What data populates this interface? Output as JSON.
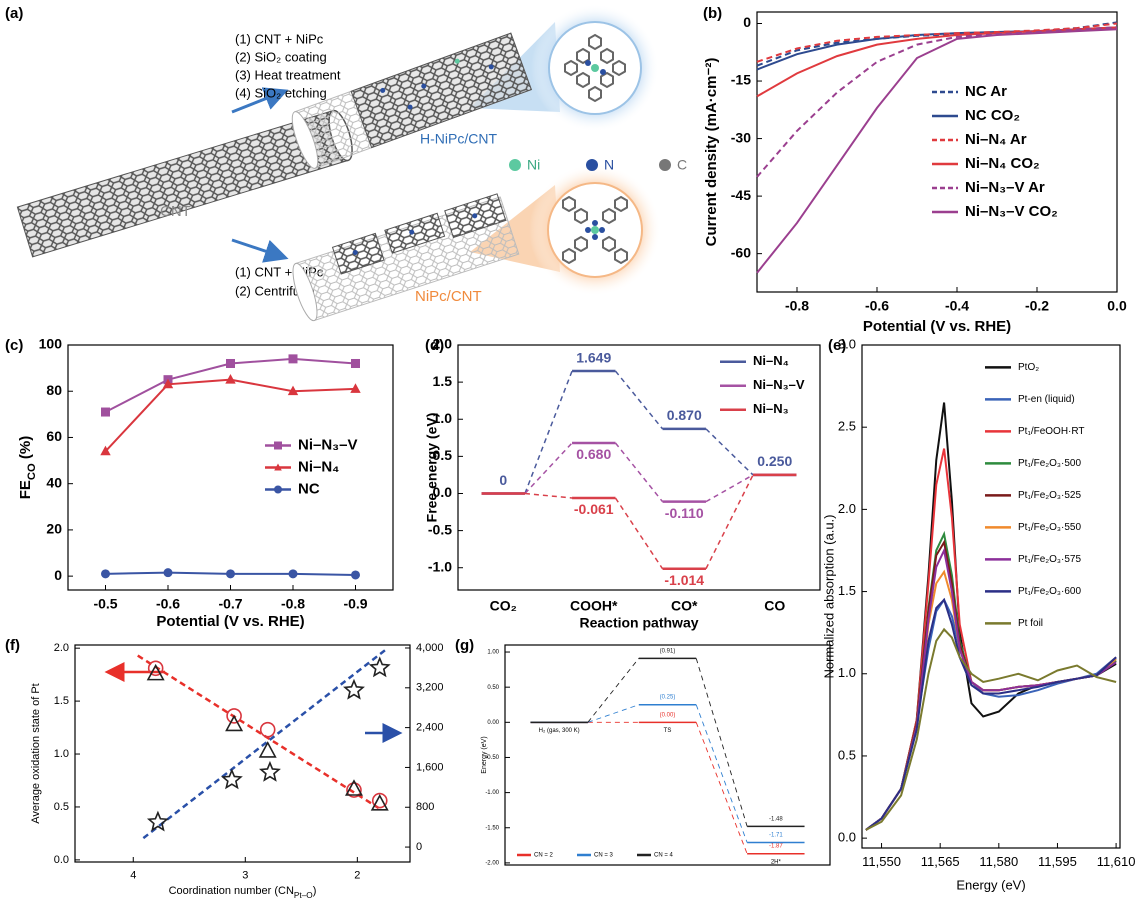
{
  "panel_a": {
    "panel_label": "(a)",
    "steps_top": [
      "(1) CNT + NiPc",
      "(2) SiO₂ coating",
      "(3) Heat treatment",
      "(4) SiO₂ etching"
    ],
    "product_top": "H-NiPc/CNT",
    "atoms": [
      "Ni",
      "N",
      "C"
    ],
    "start": "CNT",
    "steps_bottom": [
      "(1) CNT + NiPc",
      "(2) Centrifuge"
    ],
    "product_bottom": "NiPc/CNT"
  },
  "chart_data": [
    {
      "panel_label": "(b)",
      "type": "line",
      "xlabel": "Potential (V vs. RHE)",
      "ylabel": "Current density (mA·cm⁻²)",
      "x": [
        -0.9,
        -0.8,
        -0.7,
        -0.6,
        -0.5,
        -0.4,
        -0.3,
        -0.2,
        -0.1,
        0
      ],
      "xlim": [
        -0.9,
        0
      ],
      "xticks": [
        -0.8,
        -0.6,
        -0.4,
        -0.2,
        {
          "value": 0,
          "label": "0.0"
        }
      ],
      "ylim": [
        -70,
        3
      ],
      "yticks": [
        0,
        -15,
        -30,
        -45,
        -60
      ],
      "legend": "center right",
      "series": [
        {
          "name": "NC Ar",
          "color": "#2e4a8f",
          "dash": true,
          "values": [
            -11,
            -7,
            -5,
            -4,
            -3.2,
            -2.8,
            -2.4,
            -2,
            -1.2,
            0.3
          ]
        },
        {
          "name": "NC CO₂",
          "color": "#2e4a8f",
          "values": [
            -12,
            -8,
            -5.5,
            -4,
            -3,
            -2.5,
            -2.2,
            -2,
            -1.5,
            -1
          ]
        },
        {
          "name": "Ni–N₄ Ar",
          "color": "#e03a3e",
          "dash": true,
          "values": [
            -10,
            -6.5,
            -4.5,
            -3.5,
            -3,
            -2.5,
            -2.2,
            -1.8,
            -1.2,
            0
          ]
        },
        {
          "name": "Ni–N₄ CO₂",
          "color": "#e03a3e",
          "values": [
            -19,
            -13,
            -8.5,
            -5.5,
            -4,
            -3,
            -2.5,
            -2,
            -1.5,
            -1
          ]
        },
        {
          "name": "Ni–N₃–V Ar",
          "color": "#9b3f8f",
          "dash": true,
          "values": [
            -40,
            -28,
            -18,
            -10,
            -5.5,
            -3.5,
            -2.8,
            -2.2,
            -1.6,
            -1
          ]
        },
        {
          "name": "Ni–N₃–V CO₂",
          "color": "#9b3f8f",
          "values": [
            -65,
            -52,
            -37,
            -22,
            -9,
            -4,
            -3,
            -2.5,
            -2,
            -1.5
          ]
        }
      ]
    },
    {
      "panel_label": "(c)",
      "type": "line",
      "xlabel": "Potential (V vs. RHE)",
      "ylabel": [
        "FE",
        "CO",
        " (%)"
      ],
      "x": [
        -0.5,
        -0.6,
        -0.7,
        -0.8,
        -0.9
      ],
      "xlim": [
        -0.44,
        -0.96
      ],
      "xticks": [
        -0.5,
        -0.6,
        -0.7,
        -0.8,
        -0.9
      ],
      "ylim": [
        -6,
        100
      ],
      "yticks": [
        0,
        20,
        40,
        60,
        80,
        100
      ],
      "legend": "center right",
      "series": [
        {
          "name": "Ni–N₃–V",
          "color": "#a0509e",
          "marker": "square",
          "values": [
            71,
            85,
            92,
            94,
            92
          ]
        },
        {
          "name": "Ni–N₄",
          "color": "#d9363e",
          "marker": "triangle",
          "values": [
            54,
            83,
            85,
            80,
            81
          ]
        },
        {
          "name": "NC",
          "color": "#3a55a4",
          "marker": "circle",
          "values": [
            1,
            1.5,
            1,
            1,
            0.5
          ]
        }
      ]
    },
    {
      "panel_label": "(d)",
      "type": "energy",
      "xlabel": "Reaction pathway",
      "ylabel": "Free energy (eV)",
      "categories": [
        "CO₂",
        "COOH*",
        "CO*",
        "CO"
      ],
      "ylim": [
        -1.3,
        2.0
      ],
      "yticks": [
        {
          "value": -1,
          "label": "-1.0"
        },
        -0.5,
        {
          "value": 0,
          "label": "0.0"
        },
        0.5,
        {
          "value": 1,
          "label": "1.0"
        },
        1.5,
        {
          "value": 2,
          "label": "2.0"
        }
      ],
      "legend": "upper right",
      "series": [
        {
          "name": "Ni–N₄",
          "color": "#4a5a9c",
          "values": [
            0,
            1.649,
            0.87,
            0.25
          ],
          "value_labels": [
            "0",
            "1.649",
            "0.870",
            "0.250"
          ]
        },
        {
          "name": "Ni–N₃–V",
          "color": "#a552a3",
          "values": [
            0,
            0.68,
            -0.11,
            0.25
          ],
          "value_labels": [
            null,
            "0.680",
            "-0.110",
            null
          ]
        },
        {
          "name": "Ni–N₃",
          "color": "#d9404a",
          "values": [
            0,
            -0.061,
            -1.014,
            0.25
          ],
          "value_labels": [
            null,
            "-0.061",
            "-1.014",
            null
          ]
        }
      ]
    },
    {
      "panel_label": "(e)",
      "type": "line",
      "xlabel": "Energy (eV)",
      "ylabel": "Normalized absorption (a.u.)",
      "x": [
        11546,
        11550,
        11555,
        11559,
        11562,
        11564,
        11566,
        11568,
        11570,
        11573,
        11576,
        11580,
        11585,
        11590,
        11595,
        11600,
        11605,
        11610
      ],
      "xlim": [
        11545,
        11611
      ],
      "xticks": [
        {
          "value": 11550,
          "label": "11,550"
        },
        {
          "value": 11565,
          "label": "11,565"
        },
        {
          "value": 11580,
          "label": "11,580"
        },
        {
          "value": 11595,
          "label": "11,595"
        },
        {
          "value": 11610,
          "label": "11,610"
        }
      ],
      "ylim": [
        -0.06,
        3.0
      ],
      "yticks": [
        {
          "value": 0,
          "label": "0.0"
        },
        0.5,
        {
          "value": 1,
          "label": "1.0"
        },
        1.5,
        {
          "value": 2,
          "label": "2.0"
        },
        2.5,
        {
          "value": 3,
          "label": "3.0"
        }
      ],
      "legend": "upper right",
      "series": [
        {
          "name": "PtO₂",
          "color": "#111111",
          "values": [
            0.05,
            0.12,
            0.3,
            0.72,
            1.6,
            2.3,
            2.65,
            2.05,
            1.25,
            0.82,
            0.74,
            0.77,
            0.88,
            0.93,
            0.95,
            0.97,
            0.99,
            1.06
          ]
        },
        {
          "name": "Pt-en (liquid)",
          "color": "#3a63b8",
          "values": [
            0.05,
            0.12,
            0.3,
            0.7,
            1.15,
            1.38,
            1.45,
            1.35,
            1.15,
            0.95,
            0.88,
            0.86,
            0.87,
            0.9,
            0.94,
            0.97,
            1.0,
            1.1
          ]
        },
        {
          "name": "Pt₁/FeOOH·RT",
          "color": "#e8343a",
          "values": [
            0.05,
            0.12,
            0.3,
            0.72,
            1.55,
            2.15,
            2.37,
            1.95,
            1.3,
            0.95,
            0.9,
            0.9,
            0.92,
            0.93,
            0.95,
            0.97,
            0.99,
            1.08
          ]
        },
        {
          "name": "Pt₁/Fe₂O₃·500",
          "color": "#2e8b3e",
          "values": [
            0.05,
            0.12,
            0.3,
            0.7,
            1.4,
            1.75,
            1.85,
            1.6,
            1.2,
            0.95,
            0.9,
            0.9,
            0.92,
            0.93,
            0.95,
            0.97,
            0.99,
            1.08
          ]
        },
        {
          "name": "Pt₁/Fe₂O₃·525",
          "color": "#7a1a1a",
          "values": [
            0.05,
            0.12,
            0.3,
            0.7,
            1.38,
            1.72,
            1.8,
            1.55,
            1.18,
            0.95,
            0.9,
            0.9,
            0.92,
            0.93,
            0.95,
            0.97,
            0.99,
            1.1
          ]
        },
        {
          "name": "Pt₁/Fe₂O₃·550",
          "color": "#f08a2c",
          "values": [
            0.05,
            0.12,
            0.3,
            0.68,
            1.3,
            1.55,
            1.62,
            1.45,
            1.15,
            0.95,
            0.9,
            0.9,
            0.92,
            0.93,
            0.95,
            0.97,
            0.99,
            1.09
          ]
        },
        {
          "name": "Pt₁/Fe₂O₃·575",
          "color": "#8b2f9a",
          "values": [
            0.05,
            0.12,
            0.3,
            0.68,
            1.33,
            1.65,
            1.75,
            1.5,
            1.15,
            0.95,
            0.9,
            0.9,
            0.92,
            0.93,
            0.95,
            0.97,
            0.99,
            1.07
          ]
        },
        {
          "name": "Pt₁/Fe₂O₃·600",
          "color": "#2b2f86",
          "values": [
            0.05,
            0.12,
            0.3,
            0.66,
            1.2,
            1.4,
            1.45,
            1.3,
            1.1,
            0.93,
            0.88,
            0.88,
            0.9,
            0.92,
            0.95,
            0.97,
            0.99,
            1.1
          ]
        },
        {
          "name": "Pt foil",
          "color": "#7a7a2e",
          "values": [
            0.05,
            0.1,
            0.26,
            0.6,
            1.0,
            1.2,
            1.27,
            1.22,
            1.1,
            1.0,
            0.95,
            0.97,
            1.0,
            0.96,
            1.02,
            1.05,
            0.98,
            0.95
          ]
        }
      ]
    },
    {
      "panel_label": "(f)",
      "type": "scatter",
      "xlabel": [
        "Coordination number (CN",
        "Pt–O",
        ")"
      ],
      "ylabel": "Average oxidation state of Pt",
      "xlim": [
        4.52,
        1.53
      ],
      "xticks": [
        4,
        3,
        2
      ],
      "ylim": [
        -0.02,
        2.03
      ],
      "yticks": [
        {
          "value": 0,
          "label": "0.0"
        },
        0.5,
        {
          "value": 1,
          "label": "1.0"
        },
        1.5,
        {
          "value": 2,
          "label": "2.0"
        }
      ],
      "y2lim": [
        -300,
        4060
      ],
      "y2ticks": [
        0,
        800,
        {
          "value": 1600,
          "label": "1,600"
        },
        {
          "value": 2400,
          "label": "2,400"
        },
        {
          "value": 3200,
          "label": "3,200"
        },
        {
          "value": 4000,
          "label": "4,000"
        }
      ],
      "series": [
        {
          "color": "#e8302a",
          "dash": true,
          "x": [
            3.96,
            1.81
          ],
          "values": [
            1.93,
            0.49
          ]
        },
        {
          "color": "#2a50a8",
          "dash": true,
          "axis": "y2",
          "x": [
            3.91,
            1.75
          ],
          "values": [
            180,
            3960
          ]
        },
        {
          "marker": "circle",
          "color": "#d9363e",
          "x": [
            3.8,
            3.1,
            2.8,
            2.03,
            1.8
          ],
          "values": [
            1.81,
            1.36,
            1.23,
            0.66,
            0.56
          ]
        },
        {
          "marker": "triangle",
          "color": "#222222",
          "x": [
            3.8,
            3.1,
            2.8,
            2.03,
            1.8
          ],
          "values": [
            1.76,
            1.28,
            1.03,
            0.67,
            0.53
          ]
        },
        {
          "marker": "star",
          "color": "#222222",
          "axis": "y2",
          "x": [
            3.78,
            3.12,
            2.78,
            2.03,
            1.8
          ],
          "values": [
            500,
            1350,
            1500,
            3150,
            3600
          ]
        }
      ]
    },
    {
      "panel_label": "(g)",
      "type": "energy",
      "ylabel": "Energy (eV)",
      "categories": [
        "H₂ (gas, 300 K)",
        "TS",
        "2H*"
      ],
      "ylim": [
        -2.03,
        1.1
      ],
      "yticks": [
        {
          "value": 1,
          "label": "1.00"
        },
        {
          "value": 0.5,
          "label": "0.50"
        },
        {
          "value": 0,
          "label": "0.00"
        },
        {
          "value": -0.5,
          "label": "-0.50"
        },
        {
          "value": -1,
          "label": "-1.00"
        },
        {
          "value": -1.5,
          "label": "-1.50"
        },
        {
          "value": -2,
          "label": "-2.00"
        }
      ],
      "legend": "lower left",
      "series": [
        {
          "name": "CN = 2",
          "color": "#e8302a",
          "values": [
            0,
            0,
            -1.87
          ],
          "value_labels": [
            null,
            "(0.00)",
            "-1.87"
          ]
        },
        {
          "name": "CN = 3",
          "color": "#2f7fd0",
          "values": [
            0,
            0.25,
            -1.71
          ],
          "value_labels": [
            null,
            "(0.25)",
            "-1.71"
          ]
        },
        {
          "name": "CN = 4",
          "color": "#222222",
          "values": [
            0,
            0.91,
            -1.48
          ],
          "value_labels": [
            null,
            "(0.91)",
            "-1.48"
          ]
        }
      ]
    }
  ]
}
